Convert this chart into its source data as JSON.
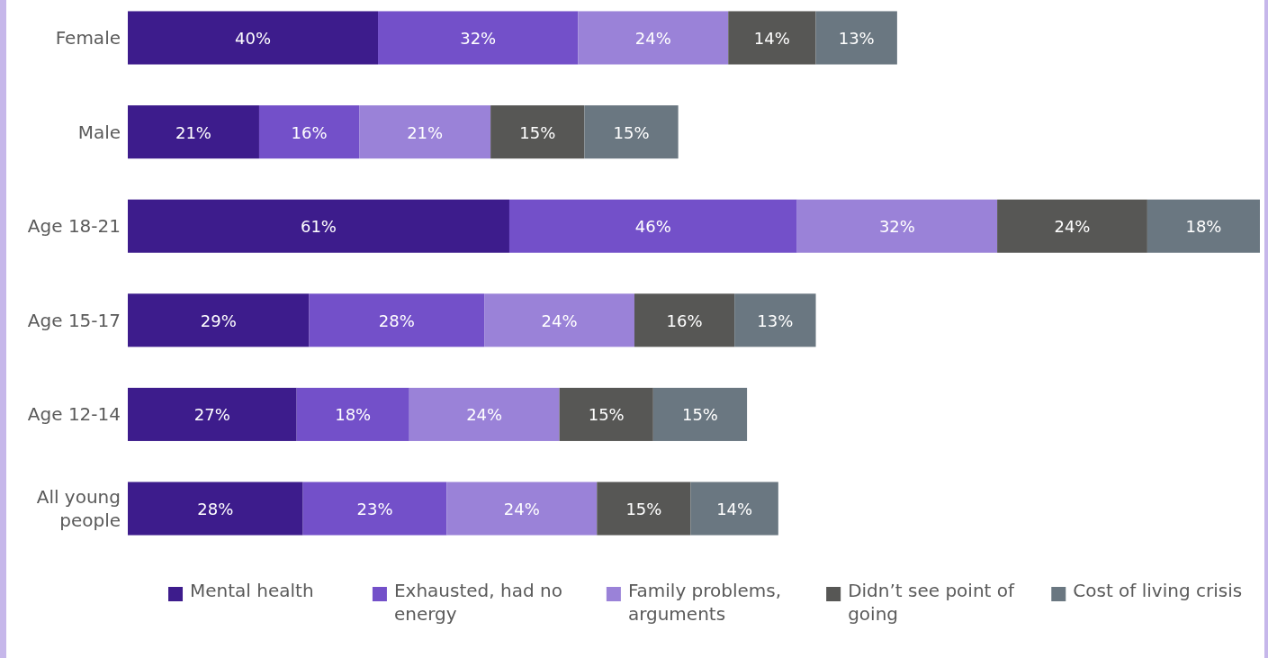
{
  "chart_data": {
    "type": "bar",
    "orientation": "horizontal",
    "stacked": true,
    "categories": [
      "Female",
      "Male",
      "Age 18-21",
      "Age 15-17",
      "Age 12-14",
      "All young people"
    ],
    "series": [
      {
        "name": "Mental health",
        "color": "#3d1c8c",
        "values": [
          40,
          21,
          61,
          29,
          27,
          28
        ],
        "value_labels": [
          "40%",
          "21%",
          "61%",
          "29%",
          "27%",
          "28%"
        ]
      },
      {
        "name": "Exhausted, had no energy",
        "color": "#7350c9",
        "values": [
          32,
          16,
          46,
          28,
          18,
          23
        ],
        "value_labels": [
          "32%",
          "16%",
          "46%",
          "28%",
          "18%",
          "23%"
        ]
      },
      {
        "name": "Family problems, arguments",
        "color": "#9a82d8",
        "values": [
          24,
          21,
          32,
          24,
          24,
          24
        ],
        "value_labels": [
          "24%",
          "21%",
          "32%",
          "24%",
          "24%",
          "24%"
        ]
      },
      {
        "name": "Didn’t see point of going",
        "color": "#575755",
        "values": [
          14,
          15,
          24,
          16,
          15,
          15
        ],
        "value_labels": [
          "14%",
          "15%",
          "24%",
          "16%",
          "15%",
          "15%"
        ]
      },
      {
        "name": "Cost of living crisis",
        "color": "#6a7781",
        "values": [
          13,
          15,
          18,
          13,
          15,
          14
        ],
        "value_labels": [
          "13%",
          "15%",
          "18%",
          "13%",
          "15%",
          "14%"
        ]
      }
    ],
    "legend": "bottom"
  }
}
